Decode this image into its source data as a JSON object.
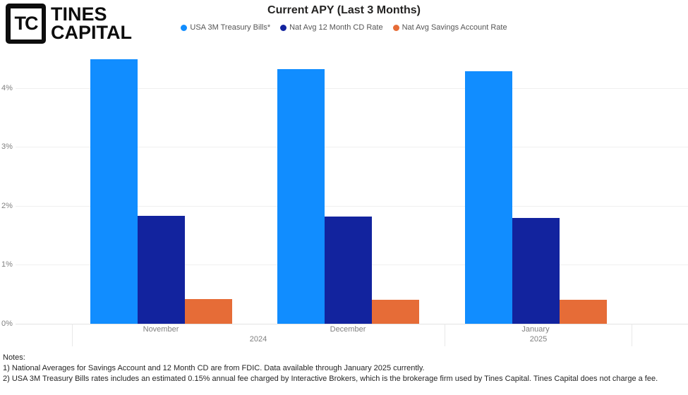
{
  "logo": {
    "monogram": "TC",
    "name_line1": "TINES",
    "name_line2": "CAPITAL"
  },
  "chart_data": {
    "type": "bar",
    "title": "Current APY (Last 3 Months)",
    "categories": [
      "November",
      "December",
      "January"
    ],
    "year_groups": [
      {
        "label": "2024",
        "category_indexes": [
          0,
          1
        ]
      },
      {
        "label": "2025",
        "category_indexes": [
          2
        ]
      }
    ],
    "series": [
      {
        "name": "USA 3M Treasury Bills*",
        "color": "#118DFF",
        "values": [
          4.48,
          4.32,
          4.28
        ]
      },
      {
        "name": "Nat Avg 12 Month CD Rate",
        "color": "#12239E",
        "values": [
          1.83,
          1.82,
          1.8
        ]
      },
      {
        "name": "Nat Avg Savings Account Rate",
        "color": "#E66C37",
        "values": [
          0.42,
          0.41,
          0.41
        ]
      }
    ],
    "ylim": [
      0,
      4.5
    ],
    "yticks": [
      "0%",
      "1%",
      "2%",
      "3%",
      "4%"
    ],
    "ytick_values": [
      0,
      1,
      2,
      3,
      4
    ],
    "grid": true,
    "legend_position": "top"
  },
  "notes": {
    "heading": "Notes:",
    "line1": "1) National Averages for Savings Account and 12 Month CD are from FDIC. Data available through January 2025 currently.",
    "line2": "2) USA 3M Treasury Bills rates includes an estimated 0.15% annual fee charged by Interactive Brokers, which is the brokerage firm used by Tines Capital. Tines Capital does not charge a fee."
  }
}
